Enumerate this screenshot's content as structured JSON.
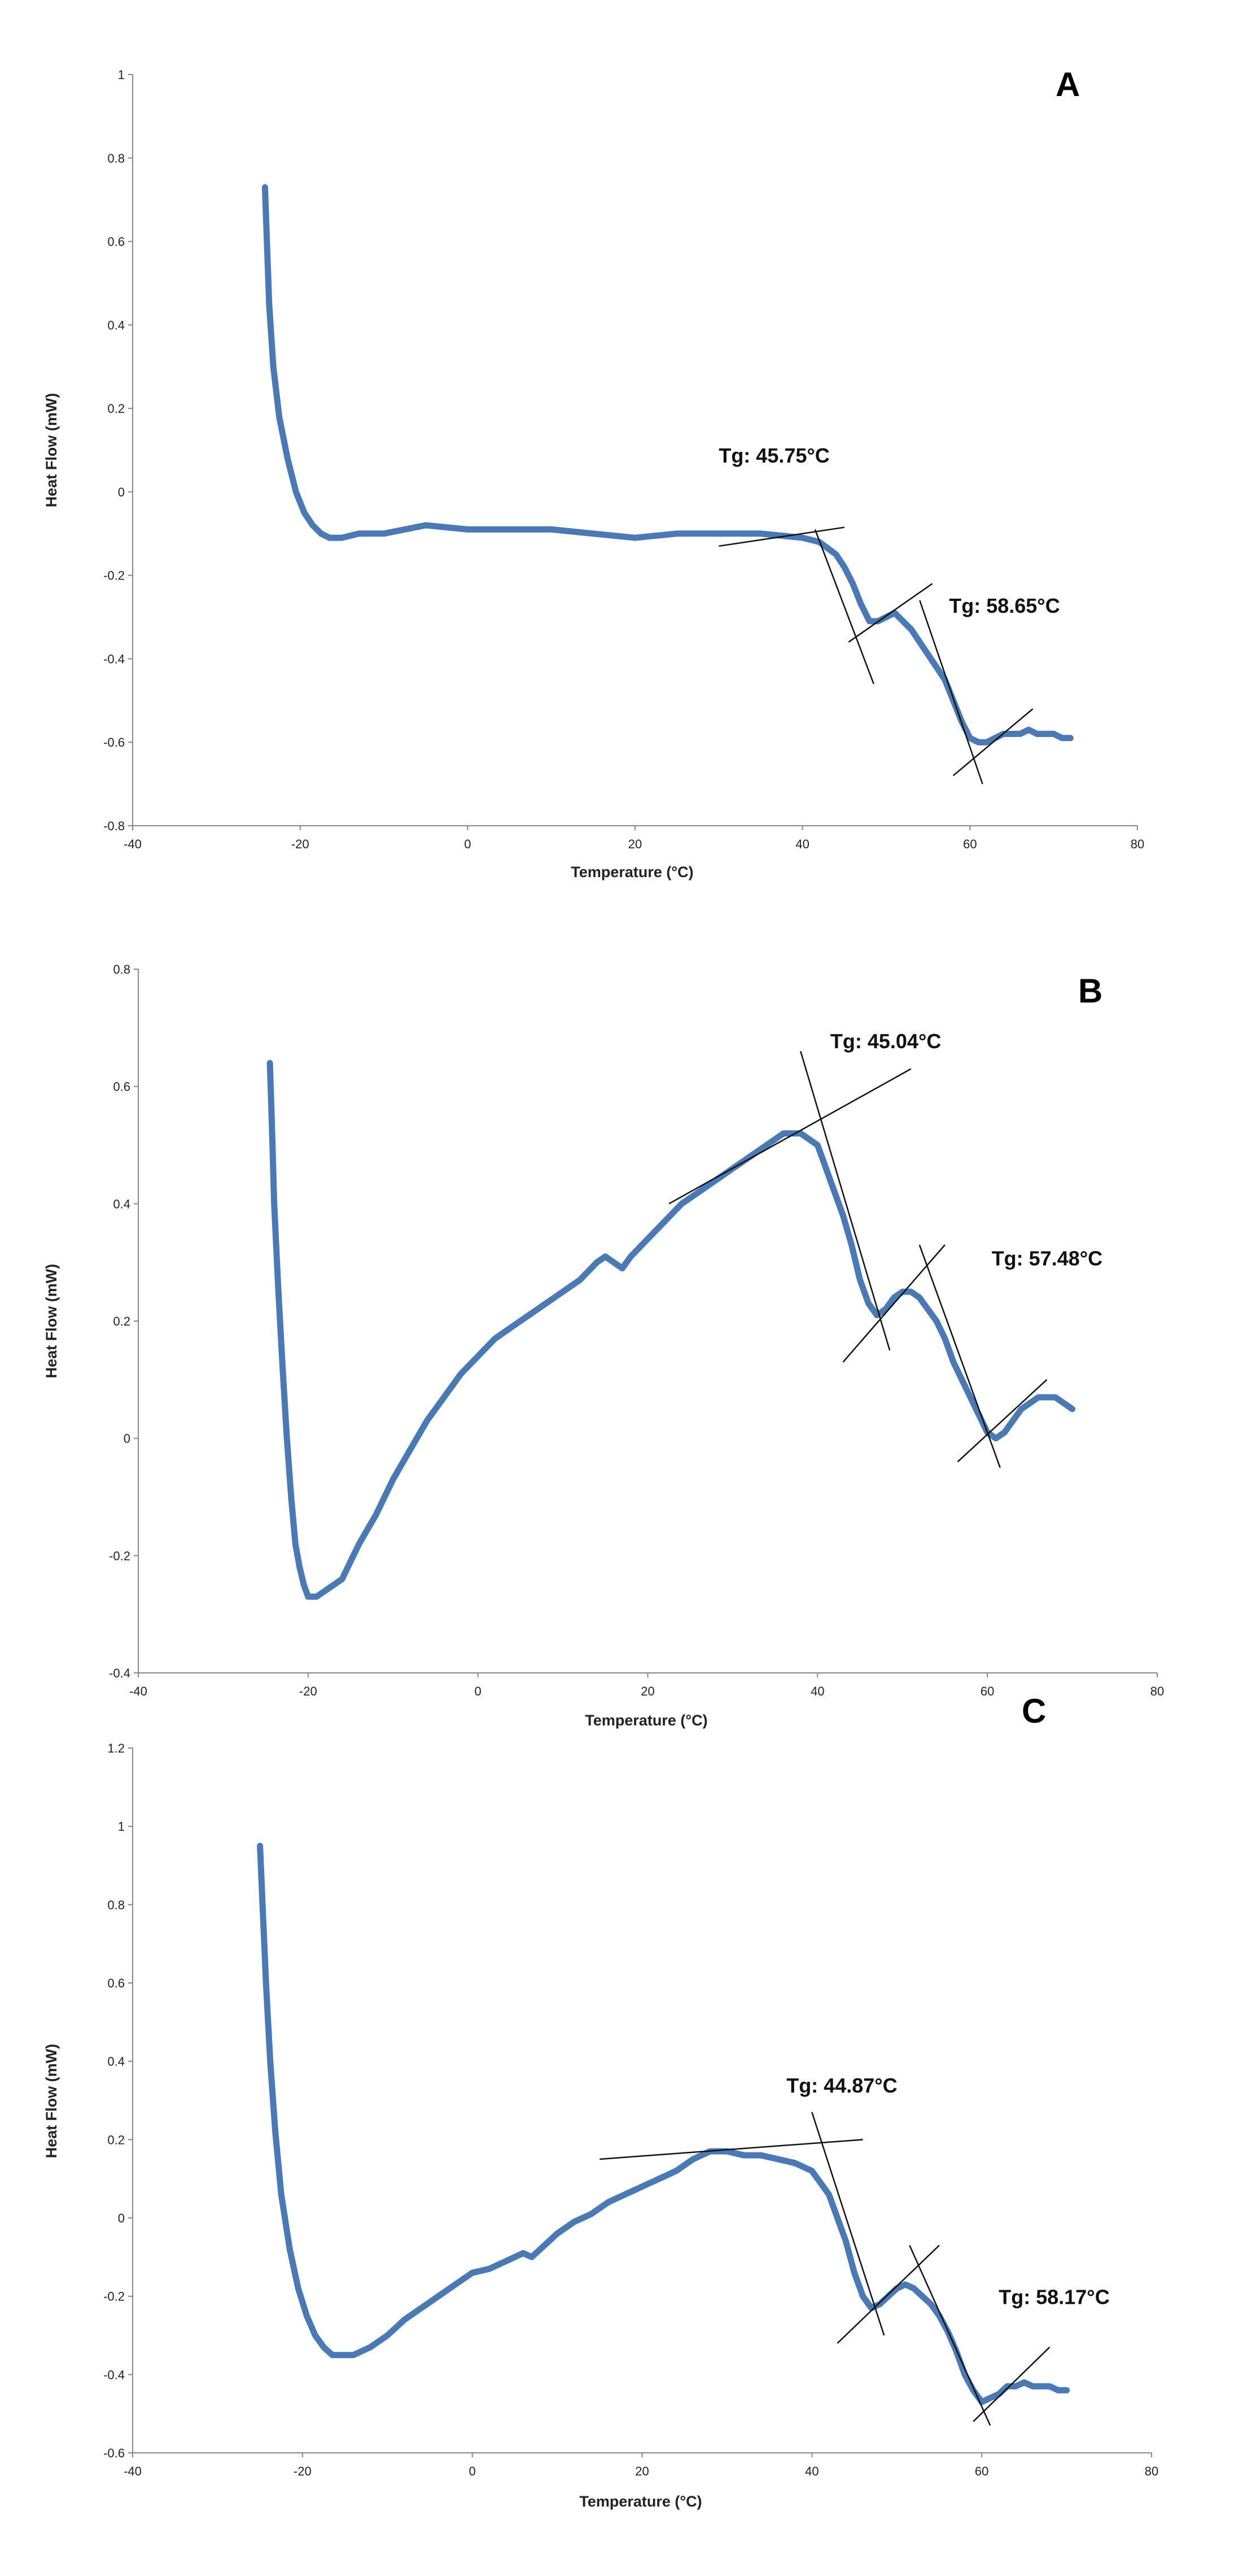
{
  "chart_data": [
    {
      "type": "line",
      "panel_label": "A",
      "xlabel": "Temperature (°C)",
      "ylabel": "Heat Flow (mW)",
      "xlim": [
        -40,
        80
      ],
      "ylim": [
        -0.8,
        1
      ],
      "xticks": [
        -40,
        -20,
        0,
        20,
        40,
        60,
        80
      ],
      "xtick_labels": [
        "-40",
        "-20",
        "0",
        "20",
        "40",
        "60",
        "80"
      ],
      "yticks": [
        -0.8,
        -0.6,
        -0.4,
        -0.2,
        0,
        0.2,
        0.4,
        0.6,
        0.8,
        1
      ],
      "ytick_labels": [
        "-0.8",
        "-0.6",
        "-0.4",
        "-0.2",
        "0",
        "0.2",
        "0.4",
        "0.6",
        "0.8",
        "1"
      ],
      "series": [
        {
          "name": "Heat Flow",
          "color": "#4a79b4",
          "x": [
            -24.2,
            -24,
            -23.7,
            -23.2,
            -22.5,
            -21.5,
            -20.5,
            -19.5,
            -18.5,
            -17.5,
            -16.5,
            -15,
            -13,
            -10,
            -5,
            0,
            5,
            10,
            15,
            20,
            25,
            30,
            35,
            40,
            42,
            44,
            45,
            46,
            47,
            48,
            49,
            50,
            51,
            52,
            53,
            54,
            55,
            56,
            57,
            58,
            59,
            60,
            61,
            62,
            63,
            64,
            65,
            66,
            67,
            68,
            69,
            70,
            71,
            72
          ],
          "y": [
            0.73,
            0.62,
            0.45,
            0.3,
            0.18,
            0.08,
            0.0,
            -0.05,
            -0.08,
            -0.1,
            -0.11,
            -0.11,
            -0.1,
            -0.1,
            -0.08,
            -0.09,
            -0.09,
            -0.09,
            -0.1,
            -0.11,
            -0.1,
            -0.1,
            -0.1,
            -0.11,
            -0.12,
            -0.15,
            -0.18,
            -0.22,
            -0.27,
            -0.31,
            -0.31,
            -0.3,
            -0.29,
            -0.31,
            -0.33,
            -0.36,
            -0.39,
            -0.42,
            -0.45,
            -0.5,
            -0.55,
            -0.59,
            -0.6,
            -0.6,
            -0.59,
            -0.58,
            -0.58,
            -0.58,
            -0.57,
            -0.58,
            -0.58,
            -0.58,
            -0.59,
            -0.59
          ]
        }
      ],
      "tangent_lines": [
        {
          "x": [
            30,
            45
          ],
          "y": [
            -0.13,
            -0.085
          ]
        },
        {
          "x": [
            41.5,
            48.5
          ],
          "y": [
            -0.09,
            -0.46
          ]
        },
        {
          "x": [
            45.5,
            55.5
          ],
          "y": [
            -0.36,
            -0.22
          ]
        },
        {
          "x": [
            54,
            61.5
          ],
          "y": [
            -0.26,
            -0.7
          ]
        },
        {
          "x": [
            58,
            67.5
          ],
          "y": [
            -0.68,
            -0.52
          ]
        }
      ],
      "annotations": [
        {
          "text": "Tg: 45.75°C",
          "x": 30,
          "y": 0.07
        },
        {
          "text": "Tg: 58.65°C",
          "x": 57.5,
          "y": -0.29
        }
      ]
    },
    {
      "type": "line",
      "panel_label": "B",
      "xlabel": "Temperature (°C)",
      "ylabel": "Heat Flow (mW)",
      "xlim": [
        -40,
        80
      ],
      "ylim": [
        -0.4,
        0.8
      ],
      "xticks": [
        -40,
        -20,
        0,
        20,
        40,
        60,
        80
      ],
      "xtick_labels": [
        "-40",
        "-20",
        "0",
        "20",
        "40",
        "60",
        "80"
      ],
      "yticks": [
        -0.4,
        -0.2,
        0,
        0.2,
        0.4,
        0.6,
        0.8
      ],
      "ytick_labels": [
        "-0.4",
        "-0.2",
        "0",
        "0.2",
        "0.4",
        "0.6",
        "0.8"
      ],
      "series": [
        {
          "name": "Heat Flow",
          "color": "#4a79b4",
          "x": [
            -24.5,
            -24.3,
            -24,
            -23.5,
            -23,
            -22.5,
            -22,
            -21.5,
            -21,
            -20.5,
            -20,
            -19.5,
            -19,
            -18,
            -17,
            -16,
            -15,
            -14,
            -12,
            -10,
            -8,
            -6,
            -4,
            -2,
            0,
            2,
            4,
            6,
            8,
            10,
            12,
            14,
            15,
            16,
            17,
            18,
            20,
            22,
            24,
            26,
            28,
            30,
            32,
            34,
            36,
            38,
            40,
            41,
            42,
            43,
            44,
            45,
            46,
            47,
            48,
            49,
            50,
            51,
            52,
            53,
            54,
            55,
            56,
            57,
            58,
            59,
            60,
            61,
            62,
            63,
            64,
            65,
            66,
            67,
            68,
            69,
            70
          ],
          "y": [
            0.64,
            0.55,
            0.4,
            0.25,
            0.12,
            0.0,
            -0.1,
            -0.18,
            -0.22,
            -0.25,
            -0.27,
            -0.27,
            -0.27,
            -0.26,
            -0.25,
            -0.24,
            -0.21,
            -0.18,
            -0.13,
            -0.07,
            -0.02,
            0.03,
            0.07,
            0.11,
            0.14,
            0.17,
            0.19,
            0.21,
            0.23,
            0.25,
            0.27,
            0.3,
            0.31,
            0.3,
            0.29,
            0.31,
            0.34,
            0.37,
            0.4,
            0.42,
            0.44,
            0.46,
            0.48,
            0.5,
            0.52,
            0.52,
            0.5,
            0.46,
            0.42,
            0.38,
            0.33,
            0.27,
            0.23,
            0.21,
            0.22,
            0.24,
            0.25,
            0.25,
            0.24,
            0.22,
            0.2,
            0.17,
            0.13,
            0.1,
            0.07,
            0.04,
            0.01,
            0.0,
            0.01,
            0.03,
            0.05,
            0.06,
            0.07,
            0.07,
            0.07,
            0.06,
            0.05
          ]
        }
      ],
      "tangent_lines": [
        {
          "x": [
            22.5,
            51
          ],
          "y": [
            0.4,
            0.63
          ]
        },
        {
          "x": [
            38,
            48.5
          ],
          "y": [
            0.66,
            0.15
          ]
        },
        {
          "x": [
            43,
            55
          ],
          "y": [
            0.13,
            0.33
          ]
        },
        {
          "x": [
            52,
            61.5
          ],
          "y": [
            0.33,
            -0.05
          ]
        },
        {
          "x": [
            56.5,
            67
          ],
          "y": [
            -0.04,
            0.1
          ]
        }
      ],
      "annotations": [
        {
          "text": "Tg: 45.04°C",
          "x": 41.5,
          "y": 0.665
        },
        {
          "text": "Tg: 57.48°C",
          "x": 60.5,
          "y": 0.295
        }
      ]
    },
    {
      "type": "line",
      "panel_label": "C",
      "xlabel": "Temperature (°C)",
      "ylabel": "Heat Flow (mW)",
      "xlim": [
        -40,
        80
      ],
      "ylim": [
        -0.6,
        1.2
      ],
      "xticks": [
        -40,
        -20,
        0,
        20,
        40,
        60,
        80
      ],
      "xtick_labels": [
        "-40",
        "-20",
        "0",
        "20",
        "40",
        "60",
        "80"
      ],
      "yticks": [
        -0.6,
        -0.4,
        -0.2,
        0,
        0.2,
        0.4,
        0.6,
        0.8,
        1,
        1.2
      ],
      "ytick_labels": [
        "-0.6",
        "-0.4",
        "-0.2",
        "0",
        "0.2",
        "0.4",
        "0.6",
        "0.8",
        "1",
        "1.2"
      ],
      "series": [
        {
          "name": "Heat Flow",
          "color": "#4a79b4",
          "x": [
            -25,
            -24.7,
            -24.3,
            -23.8,
            -23.2,
            -22.5,
            -21.5,
            -20.5,
            -19.5,
            -18.5,
            -17.5,
            -16.5,
            -15.5,
            -14,
            -12,
            -10,
            -8,
            -6,
            -4,
            -2,
            0,
            2,
            4,
            5,
            6,
            7,
            8,
            10,
            12,
            14,
            16,
            18,
            20,
            22,
            24,
            26,
            28,
            30,
            32,
            34,
            36,
            38,
            40,
            42,
            43,
            44,
            45,
            46,
            47,
            48,
            49,
            50,
            51,
            52,
            53,
            54,
            55,
            56,
            57,
            58,
            59,
            60,
            61,
            62,
            63,
            64,
            65,
            66,
            67,
            68,
            69,
            70
          ],
          "y": [
            0.95,
            0.8,
            0.6,
            0.4,
            0.22,
            0.06,
            -0.08,
            -0.18,
            -0.25,
            -0.3,
            -0.33,
            -0.35,
            -0.35,
            -0.35,
            -0.33,
            -0.3,
            -0.26,
            -0.23,
            -0.2,
            -0.17,
            -0.14,
            -0.13,
            -0.11,
            -0.1,
            -0.09,
            -0.1,
            -0.08,
            -0.04,
            -0.01,
            0.01,
            0.04,
            0.06,
            0.08,
            0.1,
            0.12,
            0.15,
            0.17,
            0.17,
            0.16,
            0.16,
            0.15,
            0.14,
            0.12,
            0.06,
            0.0,
            -0.06,
            -0.14,
            -0.2,
            -0.23,
            -0.22,
            -0.2,
            -0.18,
            -0.17,
            -0.18,
            -0.2,
            -0.22,
            -0.25,
            -0.29,
            -0.34,
            -0.4,
            -0.44,
            -0.47,
            -0.46,
            -0.45,
            -0.43,
            -0.43,
            -0.42,
            -0.43,
            -0.43,
            -0.43,
            -0.44,
            -0.44
          ]
        }
      ],
      "tangent_lines": [
        {
          "x": [
            15,
            46
          ],
          "y": [
            0.15,
            0.2
          ]
        },
        {
          "x": [
            40,
            48.5
          ],
          "y": [
            0.27,
            -0.3
          ]
        },
        {
          "x": [
            43,
            55
          ],
          "y": [
            -0.32,
            -0.07
          ]
        },
        {
          "x": [
            51.5,
            61
          ],
          "y": [
            -0.07,
            -0.53
          ]
        },
        {
          "x": [
            59,
            68
          ],
          "y": [
            -0.52,
            -0.33
          ]
        }
      ],
      "annotations": [
        {
          "text": "Tg: 44.87°C",
          "x": 37,
          "y": 0.32
        },
        {
          "text": "Tg: 58.17°C",
          "x": 62,
          "y": -0.22
        }
      ]
    }
  ]
}
